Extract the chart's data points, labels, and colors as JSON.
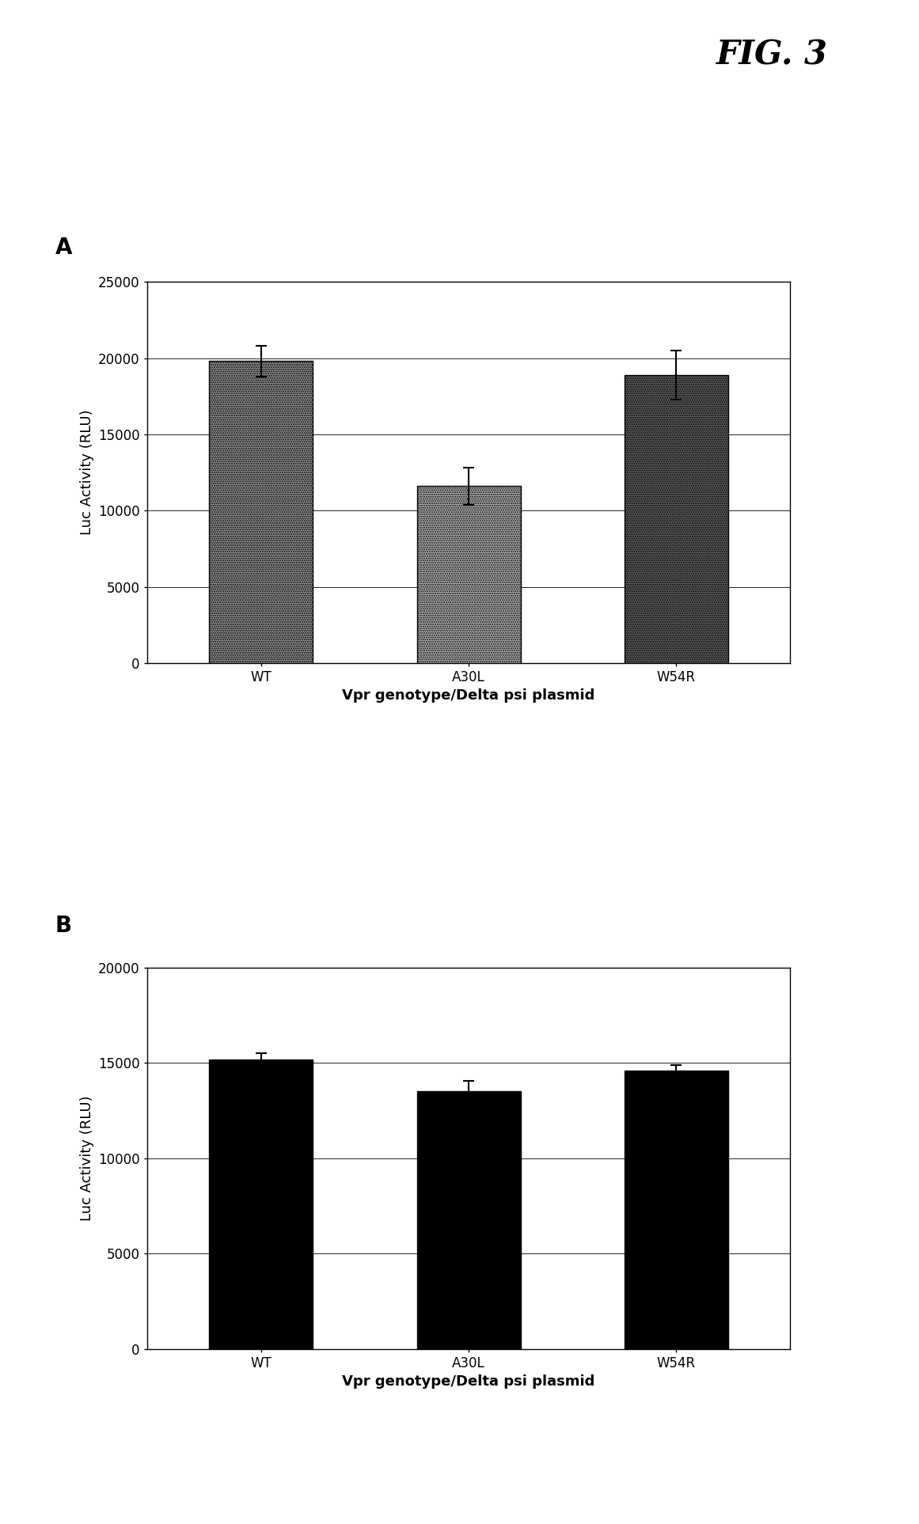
{
  "fig_label": "FIG. 3",
  "panel_A": {
    "label": "A",
    "categories": [
      "WT",
      "A30L",
      "W54R"
    ],
    "values": [
      19800,
      11600,
      18900
    ],
    "errors": [
      1000,
      1200,
      1600
    ],
    "ylim": [
      0,
      25000
    ],
    "yticks": [
      0,
      5000,
      10000,
      15000,
      20000,
      25000
    ],
    "ylabel": "Luc Activity (RLU)",
    "xlabel": "Vpr genotype/Delta psi plasmid"
  },
  "panel_B": {
    "label": "B",
    "categories": [
      "WT",
      "A30L",
      "W54R"
    ],
    "values": [
      15200,
      13500,
      14600
    ],
    "errors": [
      300,
      550,
      300
    ],
    "ylim": [
      0,
      20000
    ],
    "yticks": [
      0,
      5000,
      10000,
      15000,
      20000
    ],
    "ylabel": "Luc Activity (RLU)",
    "xlabel": "Vpr genotype/Delta psi plasmid"
  },
  "background_color": "#ffffff",
  "fig_label_fontsize": 30,
  "panel_label_fontsize": 20,
  "axis_label_fontsize": 13,
  "tick_label_fontsize": 12,
  "xlabel_fontsize": 13
}
